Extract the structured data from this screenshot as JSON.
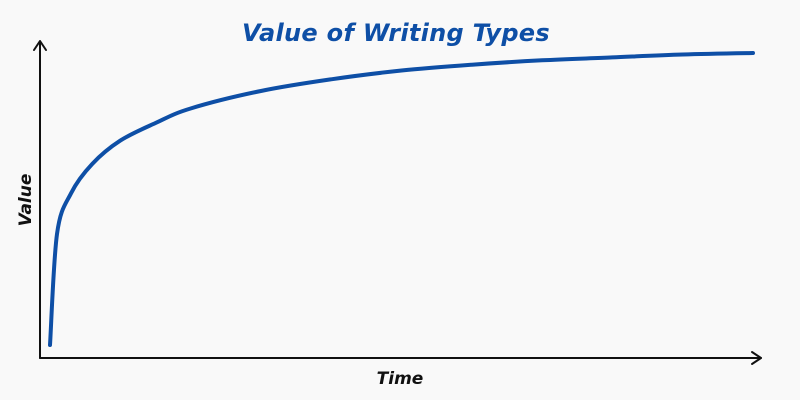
{
  "chart_data": {
    "type": "line",
    "title": "Value of Writing Types",
    "xlabel": "Time",
    "ylabel": "Value",
    "x_ticks_shown": false,
    "y_ticks_shown": false,
    "grid": false,
    "legend": "none",
    "curve_shape": "logarithmic growth that rises steeply then levels off",
    "xlim": [
      0,
      1
    ],
    "ylim": [
      0,
      1
    ],
    "series": [
      {
        "color": "#0e4fa6",
        "x": [
          0.0,
          0.01,
          0.03,
          0.06,
          0.1,
          0.15,
          0.2,
          0.3,
          0.4,
          0.5,
          0.6,
          0.7,
          0.8,
          0.9,
          1.0
        ],
        "y": [
          0.0,
          0.38,
          0.52,
          0.62,
          0.7,
          0.76,
          0.81,
          0.87,
          0.91,
          0.94,
          0.96,
          0.975,
          0.985,
          0.995,
          1.0
        ]
      }
    ]
  },
  "colors": {
    "background": "#f9f9f9",
    "title": "#0e4fa6",
    "axis": "#111111"
  }
}
